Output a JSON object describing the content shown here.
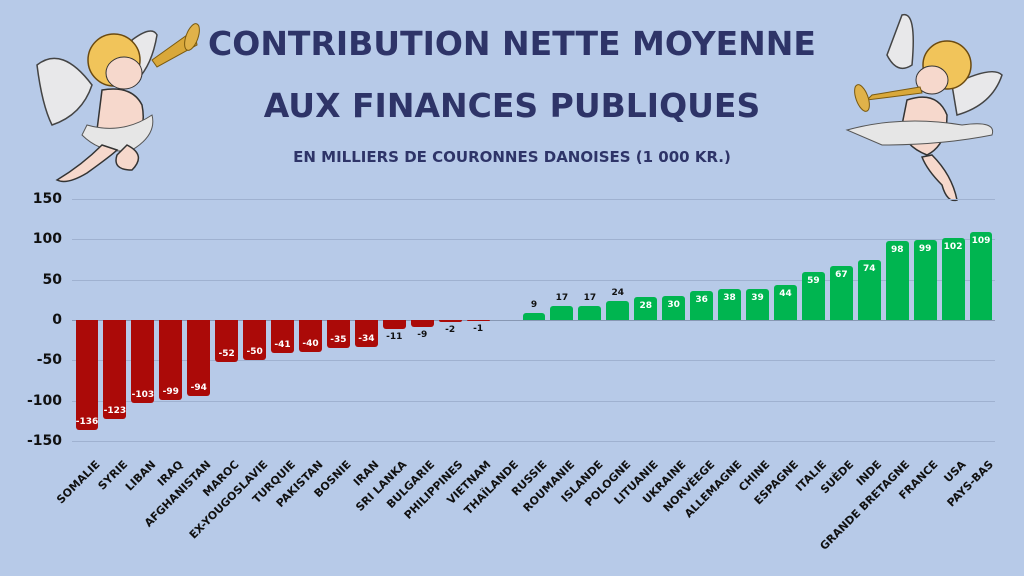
{
  "header": {
    "title_line1": "Contribution nette moyenne",
    "title_line2": "aux finances publiques",
    "subtitle": "en milliers de couronnes danoises (1 000 kr.)"
  },
  "decorations": {
    "left": "cherub-trumpet-icon",
    "right": "cherub-trumpet-icon"
  },
  "colors": {
    "background": "#b7cae8",
    "title": "#2e3468",
    "negative": "#ab0a08",
    "positive": "#00b550"
  },
  "yaxis": {
    "ticks": [
      "150",
      "100",
      "50",
      "0",
      "-50",
      "-100",
      "-150"
    ]
  },
  "chart_data": {
    "type": "bar",
    "title": "Contribution nette moyenne aux finances publiques",
    "subtitle": "en milliers de couronnes danoises (1 000 kr.)",
    "xlabel": "",
    "ylabel": "",
    "ylim": [
      -150,
      150
    ],
    "yticks": [
      -150,
      -100,
      -50,
      0,
      50,
      100,
      150
    ],
    "grid": true,
    "legend": null,
    "categories": [
      "Somalie",
      "Syrie",
      "Liban",
      "Iraq",
      "Afghanistan",
      "Maroc",
      "Ex-Yougoslavie",
      "Turquie",
      "Pakistan",
      "Bosnie",
      "Iran",
      "Sri Lanka",
      "Bulgarie",
      "Philippines",
      "Vietnam",
      "Thaïlande",
      "Russie",
      "Roumanie",
      "Islande",
      "Pologne",
      "Lituanie",
      "Ukraine",
      "Norvèege",
      "Allemagne",
      "Chine",
      "Espagne",
      "Italie",
      "Suède",
      "Inde",
      "Grande Bretagne",
      "France",
      "USA",
      "Pays-Bas"
    ],
    "values": [
      -136,
      -123,
      -103,
      -99,
      -94,
      -52,
      -50,
      -41,
      -40,
      -35,
      -34,
      -11,
      -9,
      -2,
      -1,
      0,
      9,
      17,
      17,
      24,
      28,
      30,
      36,
      38,
      39,
      44,
      59,
      67,
      74,
      98,
      99,
      102,
      109
    ],
    "labels": [
      "-136",
      "-123",
      "-103",
      "-99",
      "-94",
      "-52",
      "-50",
      "-41",
      "-40",
      "-35",
      "-34",
      "-11",
      "-9",
      "-2",
      "-1",
      "",
      "9",
      "17",
      "17",
      "24",
      "28",
      "30",
      "36",
      "38",
      "39",
      "44",
      "59",
      "67",
      "74",
      "98",
      "99",
      "102",
      "109"
    ]
  }
}
